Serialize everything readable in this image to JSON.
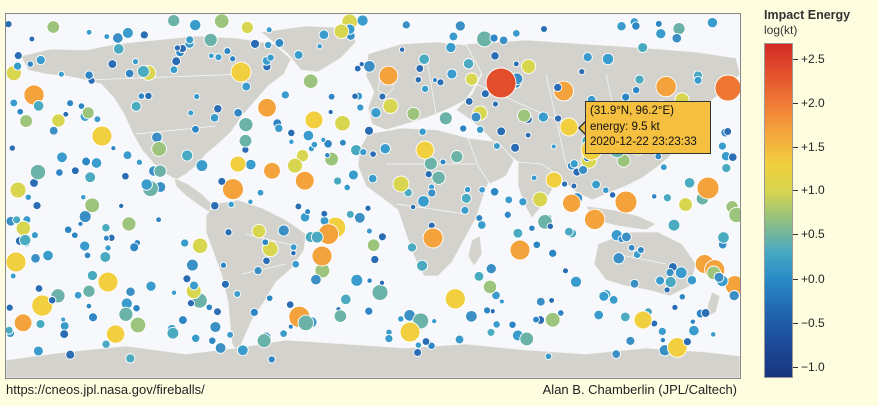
{
  "tooltip": {
    "coords": "(31.9°N, 96.2°E)",
    "energy": "energy: 9.5 kt",
    "datetime": "2020-12-22 23:23:33"
  },
  "legend": {
    "title": "Impact Energy",
    "unit": "log(kt)",
    "ticks": [
      "+2.5",
      "+2.0",
      "+1.5",
      "+1.0",
      "+0.5",
      "+0.0",
      "−0.5",
      "−1.0"
    ],
    "scale_colors": {
      "high": "#d42a26",
      "mid": "#f1cf3e",
      "neutral": "#4aaac0",
      "low": "#1a3580"
    }
  },
  "footer": {
    "url": "https://cneos.jpl.nasa.gov/fireballs/",
    "credit": "Alan B. Chamberlin (JPL/Caltech)"
  }
}
